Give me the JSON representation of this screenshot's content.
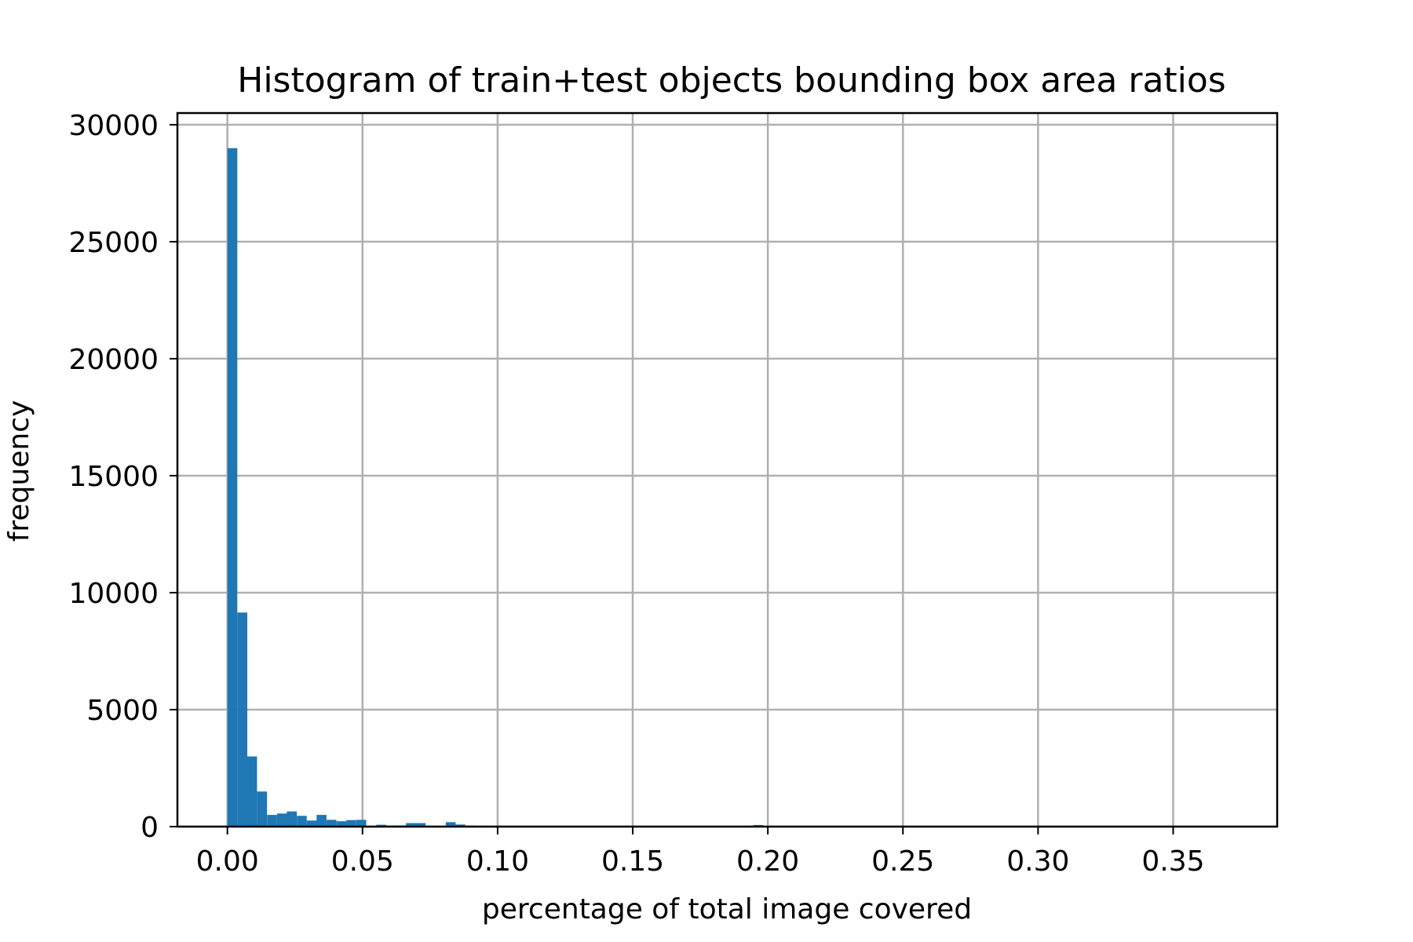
{
  "chart_data": {
    "type": "bar",
    "title": "Histogram of train+test objects bounding box area ratios",
    "xlabel": "percentage of total image covered",
    "ylabel": "frequency",
    "xlim": [
      -0.0185,
      0.3885
    ],
    "ylim": [
      0,
      30500
    ],
    "x_ticks": [
      0.0,
      0.05,
      0.1,
      0.15,
      0.2,
      0.25,
      0.3,
      0.35
    ],
    "x_tick_labels": [
      "0.00",
      "0.05",
      "0.10",
      "0.15",
      "0.20",
      "0.25",
      "0.30",
      "0.35"
    ],
    "y_ticks": [
      0,
      5000,
      10000,
      15000,
      20000,
      25000,
      30000
    ],
    "y_tick_labels": [
      "0",
      "5000",
      "10000",
      "15000",
      "20000",
      "25000",
      "30000"
    ],
    "grid": true,
    "bar_color": "#1f77b4",
    "bin_width": 0.00367,
    "bins": [
      {
        "x": 0.0,
        "value": 29000
      },
      {
        "x": 0.0037,
        "value": 9150
      },
      {
        "x": 0.0073,
        "value": 3000
      },
      {
        "x": 0.011,
        "value": 1500
      },
      {
        "x": 0.0147,
        "value": 500
      },
      {
        "x": 0.0184,
        "value": 560
      },
      {
        "x": 0.022,
        "value": 650
      },
      {
        "x": 0.0257,
        "value": 460
      },
      {
        "x": 0.0294,
        "value": 260
      },
      {
        "x": 0.033,
        "value": 500
      },
      {
        "x": 0.0367,
        "value": 290
      },
      {
        "x": 0.0404,
        "value": 230
      },
      {
        "x": 0.044,
        "value": 280
      },
      {
        "x": 0.0477,
        "value": 290
      },
      {
        "x": 0.0514,
        "value": 20
      },
      {
        "x": 0.0551,
        "value": 80
      },
      {
        "x": 0.0587,
        "value": 50
      },
      {
        "x": 0.0624,
        "value": 50
      },
      {
        "x": 0.0661,
        "value": 150
      },
      {
        "x": 0.0697,
        "value": 150
      },
      {
        "x": 0.0734,
        "value": 20
      },
      {
        "x": 0.0771,
        "value": 10
      },
      {
        "x": 0.0808,
        "value": 190
      },
      {
        "x": 0.0844,
        "value": 90
      },
      {
        "x": 0.0881,
        "value": 40
      },
      {
        "x": 0.0918,
        "value": 15
      },
      {
        "x": 0.0954,
        "value": 10
      },
      {
        "x": 0.1028,
        "value": 5
      },
      {
        "x": 0.1101,
        "value": 5
      },
      {
        "x": 0.1946,
        "value": 70
      },
      {
        "x": 0.1982,
        "value": 15
      }
    ]
  }
}
